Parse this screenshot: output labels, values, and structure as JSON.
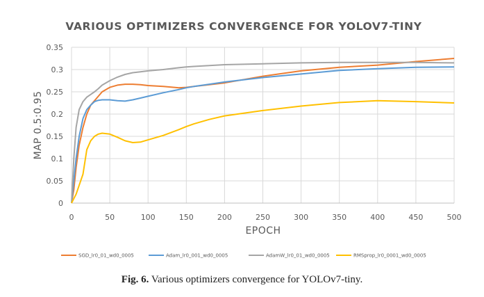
{
  "chart_data": {
    "type": "line",
    "title": "VARIOUS OPTIMIZERS CONVERGENCE FOR YOLOV7-TINY",
    "xlabel": "EPOCH",
    "ylabel": "MAP 0.5:0.95",
    "xlim": [
      0,
      500
    ],
    "ylim": [
      0,
      0.35
    ],
    "xticks": [
      "0",
      "50",
      "100",
      "150",
      "200",
      "250",
      "300",
      "350",
      "400",
      "450",
      "500"
    ],
    "yticks": [
      "0",
      "0.05",
      "0.1",
      "0.15",
      "0.2",
      "0.25",
      "0.3",
      "0.35"
    ],
    "grid": true,
    "legend_position": "bottom",
    "series": [
      {
        "name": "SGD_lr0_01_wd0_0005",
        "color": "#ED7D31",
        "x": [
          0,
          3,
          6,
          10,
          15,
          20,
          25,
          30,
          35,
          40,
          50,
          60,
          70,
          80,
          90,
          100,
          120,
          140,
          150,
          160,
          180,
          200,
          250,
          300,
          350,
          400,
          450,
          500
        ],
        "y": [
          0.0,
          0.03,
          0.08,
          0.13,
          0.17,
          0.2,
          0.22,
          0.23,
          0.24,
          0.25,
          0.26,
          0.265,
          0.267,
          0.267,
          0.266,
          0.264,
          0.262,
          0.259,
          0.26,
          0.262,
          0.266,
          0.27,
          0.285,
          0.297,
          0.305,
          0.31,
          0.318,
          0.325
        ]
      },
      {
        "name": "Adam_lr0_001_wd0_0005",
        "color": "#5B9BD5",
        "x": [
          0,
          3,
          6,
          10,
          15,
          20,
          25,
          30,
          35,
          40,
          50,
          60,
          70,
          80,
          90,
          100,
          120,
          140,
          150,
          160,
          180,
          200,
          250,
          300,
          350,
          400,
          450,
          500
        ],
        "y": [
          0.0,
          0.05,
          0.1,
          0.15,
          0.19,
          0.21,
          0.22,
          0.228,
          0.231,
          0.232,
          0.232,
          0.23,
          0.229,
          0.232,
          0.236,
          0.24,
          0.248,
          0.255,
          0.259,
          0.262,
          0.267,
          0.272,
          0.282,
          0.29,
          0.298,
          0.302,
          0.305,
          0.306
        ]
      },
      {
        "name": "AdamW_lr0_01_wd0_0005",
        "color": "#A5A5A5",
        "x": [
          0,
          3,
          6,
          10,
          15,
          20,
          25,
          30,
          35,
          40,
          50,
          60,
          70,
          80,
          90,
          100,
          120,
          140,
          150,
          160,
          180,
          200,
          250,
          300,
          350,
          400,
          450,
          500
        ],
        "y": [
          0.0,
          0.1,
          0.17,
          0.21,
          0.228,
          0.238,
          0.244,
          0.25,
          0.257,
          0.265,
          0.275,
          0.283,
          0.289,
          0.293,
          0.295,
          0.297,
          0.3,
          0.304,
          0.306,
          0.307,
          0.309,
          0.311,
          0.313,
          0.315,
          0.316,
          0.316,
          0.316,
          0.315
        ]
      },
      {
        "name": "RMSprop_lr0_0001_wd0_0005",
        "color": "#FFC000",
        "x": [
          0,
          3,
          6,
          10,
          15,
          20,
          25,
          30,
          35,
          40,
          50,
          60,
          70,
          80,
          90,
          100,
          120,
          140,
          150,
          160,
          180,
          200,
          250,
          300,
          350,
          400,
          450,
          500
        ],
        "y": [
          0.0,
          0.01,
          0.02,
          0.04,
          0.065,
          0.12,
          0.14,
          0.15,
          0.155,
          0.157,
          0.155,
          0.148,
          0.14,
          0.136,
          0.137,
          0.142,
          0.152,
          0.165,
          0.172,
          0.178,
          0.188,
          0.196,
          0.208,
          0.218,
          0.226,
          0.23,
          0.228,
          0.225
        ]
      }
    ]
  },
  "caption": {
    "label": "Fig. 6.",
    "text": " Various optimizers convergence for YOLOv7-tiny."
  }
}
